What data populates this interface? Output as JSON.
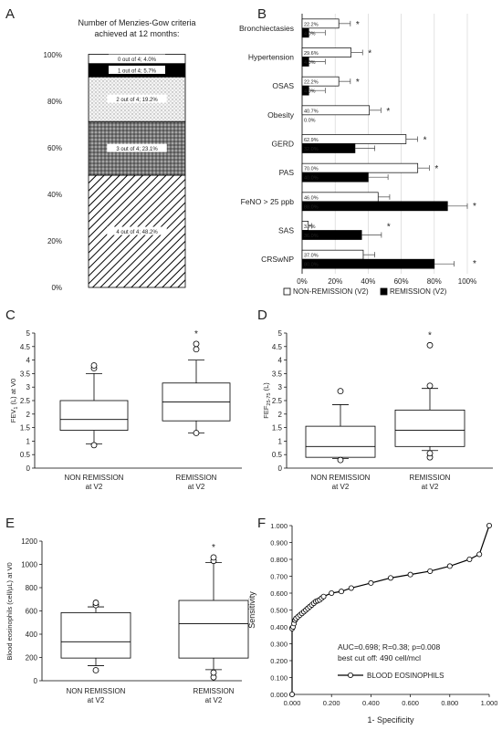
{
  "chart_data": [
    {
      "panel": "A",
      "type": "bar",
      "stacked": true,
      "title": "Number of Menzies-Gow criteria achieved at 12 months:",
      "ylim": [
        0,
        100
      ],
      "yticks": [
        "0%",
        "20%",
        "40%",
        "60%",
        "80%",
        "100%"
      ],
      "segments": [
        {
          "label": "4 out of 4; 48.2%",
          "value": 48.2,
          "pattern": "diagonal-hatch"
        },
        {
          "label": "3 out of 4; 23.1%",
          "value": 23.1,
          "pattern": "dark-dots"
        },
        {
          "label": "2 out of 4; 19.2%",
          "value": 19.2,
          "pattern": "light-dots"
        },
        {
          "label": "1 out of 4; 5.7%",
          "value": 5.7,
          "pattern": "solid-black"
        },
        {
          "label": "0 out of 4; 4.0%",
          "value": 4.0,
          "pattern": "white"
        }
      ]
    },
    {
      "panel": "B",
      "type": "bar",
      "orientation": "horizontal",
      "xticks": [
        "0%",
        "20%",
        "40%",
        "60%",
        "80%",
        "100%"
      ],
      "xlim": [
        0,
        100
      ],
      "categories": [
        "Bronchiectasies",
        "Hypertension",
        "OSAS",
        "Obesity",
        "GERD",
        "PAS",
        "FeNO > 25 ppb",
        "SAS",
        "CRSwNP"
      ],
      "series": [
        {
          "name": "NON-REMISSION (V2)",
          "color": "#ffffff",
          "values": [
            22.2,
            29.6,
            22.2,
            40.7,
            62.9,
            70.0,
            46.0,
            3.7,
            37.0
          ],
          "labels": [
            "22.2%",
            "29.6%",
            "22.2%",
            "40.7%",
            "62.9%",
            "70.0%",
            "46.0%",
            "3.7%",
            "37.0%"
          ],
          "errors": [
            7,
            7,
            7,
            7,
            7,
            7,
            7,
            2,
            7
          ]
        },
        {
          "name": "REMISSION (V2)",
          "color": "#000000",
          "values": [
            4.0,
            4.0,
            4.0,
            0.0,
            32.0,
            40.0,
            88.0,
            36.0,
            80.0
          ],
          "labels": [
            "4.0%",
            "4.0%",
            "4.0%",
            "0.0%",
            "32.0%",
            "40.0%",
            "88.0%",
            "36.0%",
            "80.0%"
          ],
          "errors": [
            10,
            10,
            10,
            0,
            12,
            12,
            12,
            12,
            12
          ]
        }
      ],
      "significance_marker": "*",
      "legend_placement": "bottom"
    },
    {
      "panel": "C",
      "type": "box",
      "ylabel": "FEV",
      "ylabel_sub": "1",
      "ylabel_rest": " (L) at V0",
      "ylim": [
        0,
        5
      ],
      "yticks": [
        "0",
        "0.5",
        "1",
        "1.5",
        "2",
        "2.5",
        "3",
        "3.5",
        "4",
        "4.5",
        "5"
      ],
      "groups": [
        {
          "label1": "NON REMISSION",
          "label2": "at V2",
          "min": 0.9,
          "q1": 1.4,
          "median": 1.8,
          "q3": 2.5,
          "max": 3.5,
          "outliers": [
            0.85,
            3.7,
            3.8
          ]
        },
        {
          "label1": "REMISSION",
          "label2": "at V2",
          "min": 1.3,
          "q1": 1.75,
          "median": 2.45,
          "q3": 3.15,
          "max": 4.0,
          "outliers": [
            1.3,
            4.4,
            4.6
          ]
        }
      ],
      "significance_marker": "*"
    },
    {
      "panel": "D",
      "type": "box",
      "ylabel": "FEF",
      "ylabel_sub": "25-75",
      "ylabel_rest": " (L)",
      "ylim": [
        0,
        5
      ],
      "yticks": [
        "0",
        "0.5",
        "1",
        "1.5",
        "2",
        "2.5",
        "3",
        "3.5",
        "4",
        "4.5",
        "5"
      ],
      "groups": [
        {
          "label1": "NON REMISSION",
          "label2": "at V2",
          "min": 0.35,
          "q1": 0.4,
          "median": 0.8,
          "q3": 1.55,
          "max": 2.35,
          "outliers": [
            0.3,
            2.85
          ]
        },
        {
          "label1": "REMISSION",
          "label2": "at V2",
          "min": 0.65,
          "q1": 0.8,
          "median": 1.4,
          "q3": 2.15,
          "max": 2.95,
          "outliers": [
            0.4,
            0.55,
            3.05,
            4.55
          ]
        }
      ],
      "significance_marker": "*"
    },
    {
      "panel": "E",
      "type": "box",
      "ylabel": "Blood eosinophils (cell/μL) at V0",
      "ylim": [
        0,
        1200
      ],
      "yticks": [
        "0",
        "200",
        "400",
        "600",
        "800",
        "1000",
        "1200"
      ],
      "groups": [
        {
          "label1": "NON REMISSION",
          "label2": "at V2",
          "min": 130,
          "q1": 195,
          "median": 335,
          "q3": 585,
          "max": 635,
          "outliers": [
            90,
            650,
            670
          ]
        },
        {
          "label1": "REMISSION",
          "label2": "at V2",
          "min": 95,
          "q1": 195,
          "median": 490,
          "q3": 690,
          "max": 1015,
          "outliers": [
            30,
            70,
            1030,
            1060
          ]
        }
      ],
      "significance_marker": "*"
    },
    {
      "panel": "F",
      "type": "line",
      "xlabel": "1- Specificity",
      "ylabel": "Sensitivity",
      "xlim": [
        0,
        1
      ],
      "ylim": [
        0,
        1
      ],
      "xticks": [
        "0.000",
        "0.200",
        "0.400",
        "0.600",
        "0.800",
        "1.000"
      ],
      "yticks": [
        "0.000",
        "0.100",
        "0.200",
        "0.300",
        "0.400",
        "0.500",
        "0.600",
        "0.700",
        "0.800",
        "0.900",
        "1.000"
      ],
      "series": [
        {
          "name": "BLOOD EOSINOPHILS",
          "x": [
            0.0,
            0.0,
            0.005,
            0.01,
            0.015,
            0.02,
            0.03,
            0.04,
            0.05,
            0.06,
            0.07,
            0.08,
            0.09,
            0.1,
            0.11,
            0.12,
            0.13,
            0.14,
            0.15,
            0.16,
            0.2,
            0.25,
            0.3,
            0.4,
            0.5,
            0.6,
            0.7,
            0.8,
            0.9,
            0.95,
            1.0
          ],
          "y": [
            0.0,
            0.39,
            0.4,
            0.42,
            0.44,
            0.45,
            0.46,
            0.47,
            0.48,
            0.49,
            0.5,
            0.51,
            0.52,
            0.53,
            0.54,
            0.55,
            0.555,
            0.56,
            0.57,
            0.58,
            0.6,
            0.61,
            0.63,
            0.66,
            0.69,
            0.71,
            0.73,
            0.76,
            0.8,
            0.83,
            1.0
          ]
        }
      ],
      "annotations": [
        "AUC=0.698; R=0.38; p=0.008",
        "best cut off: 490 cell/mcl"
      ]
    }
  ],
  "panel_letters": [
    "A",
    "B",
    "C",
    "D",
    "E",
    "F"
  ]
}
